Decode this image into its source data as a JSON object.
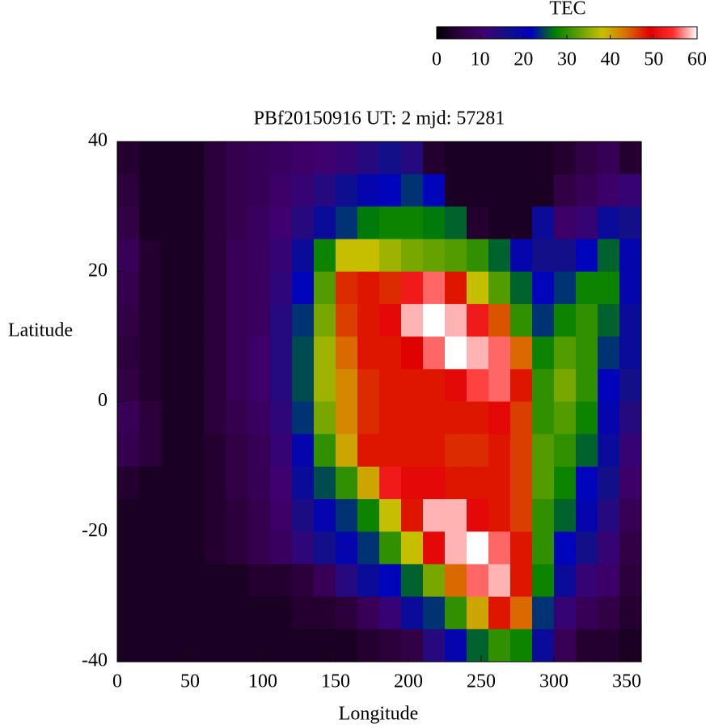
{
  "chart_data": {
    "type": "heatmap",
    "title": "PBf20150916  UT: 2  mjd: 57281",
    "x_label": "Longitude",
    "y_label": "Latitude",
    "colorbar_label": "TEC",
    "xlim": [
      0,
      360
    ],
    "xticks": [
      0,
      50,
      100,
      150,
      200,
      250,
      300,
      350
    ],
    "ylim": [
      -40,
      40
    ],
    "yticks": [
      -40,
      -20,
      0,
      20,
      40
    ],
    "zlim": [
      0,
      60
    ],
    "zticks": [
      0,
      10,
      20,
      30,
      40,
      50,
      60
    ],
    "colors": [
      "#000000",
      "#300040",
      "#400070",
      "#10108a",
      "#0000c0",
      "#008000",
      "#60a000",
      "#c8c000",
      "#d87000",
      "#e00000",
      "#ff3030",
      "#ffffff"
    ],
    "x": [
      7.5,
      22.5,
      37.5,
      52.5,
      67.5,
      82.5,
      97.5,
      112.5,
      127.5,
      142.5,
      157.5,
      172.5,
      187.5,
      202.5,
      217.5,
      232.5,
      247.5,
      262.5,
      277.5,
      292.5,
      307.5,
      322.5,
      337.5,
      352.5
    ],
    "y": [
      37.5,
      32.5,
      27.5,
      22.5,
      17.5,
      12.5,
      7.5,
      2.5,
      -2.5,
      -7.5,
      -12.5,
      -17.5,
      -22.5,
      -27.5,
      -32.5,
      -37.5
    ],
    "z": [
      [
        4,
        3,
        3,
        3,
        5,
        7,
        8,
        9,
        10,
        11,
        12,
        14,
        16,
        14,
        4,
        3,
        3,
        3,
        3,
        3,
        4,
        6,
        8,
        4
      ],
      [
        5,
        3,
        3,
        3,
        5,
        7,
        8,
        10,
        12,
        14,
        17,
        20,
        22,
        24,
        22,
        3,
        3,
        3,
        3,
        3,
        6,
        8,
        10,
        12
      ],
      [
        6,
        3,
        3,
        3,
        5,
        7,
        9,
        11,
        14,
        18,
        24,
        27,
        28,
        28,
        27,
        26,
        4,
        3,
        3,
        18,
        10,
        12,
        18,
        16
      ],
      [
        8,
        4,
        3,
        3,
        5,
        8,
        9,
        12,
        18,
        28,
        38,
        38,
        36,
        34,
        33,
        32,
        30,
        26,
        20,
        16,
        16,
        22,
        26,
        20
      ],
      [
        7,
        4,
        3,
        3,
        5,
        8,
        9,
        13,
        22,
        32,
        47,
        48,
        47,
        52,
        56,
        48,
        38,
        32,
        26,
        22,
        24,
        28,
        28,
        20
      ],
      [
        6,
        4,
        3,
        3,
        5,
        8,
        9,
        14,
        24,
        34,
        46,
        48,
        50,
        58,
        60,
        58,
        52,
        45,
        30,
        24,
        28,
        30,
        26,
        18
      ],
      [
        5,
        4,
        3,
        3,
        5,
        8,
        10,
        14,
        25,
        36,
        44,
        48,
        48,
        49,
        56,
        60,
        58,
        56,
        44,
        28,
        32,
        30,
        24,
        18
      ],
      [
        6,
        4,
        3,
        3,
        5,
        8,
        10,
        14,
        25,
        36,
        42,
        47,
        48,
        48,
        48,
        50,
        55,
        56,
        48,
        30,
        34,
        30,
        22,
        16
      ],
      [
        8,
        5,
        3,
        3,
        5,
        7,
        9,
        13,
        24,
        34,
        42,
        47,
        48,
        48,
        48,
        48,
        48,
        50,
        46,
        30,
        32,
        28,
        20,
        14
      ],
      [
        7,
        5,
        3,
        3,
        4,
        6,
        8,
        12,
        20,
        30,
        40,
        48,
        48,
        48,
        48,
        47,
        47,
        48,
        46,
        32,
        30,
        26,
        18,
        12
      ],
      [
        4,
        3,
        3,
        3,
        4,
        6,
        8,
        11,
        18,
        25,
        30,
        40,
        52,
        50,
        50,
        48,
        48,
        48,
        46,
        32,
        28,
        22,
        16,
        10
      ],
      [
        3,
        3,
        3,
        3,
        4,
        5,
        7,
        10,
        15,
        20,
        24,
        28,
        38,
        48,
        58,
        58,
        50,
        48,
        46,
        30,
        26,
        20,
        14,
        8
      ],
      [
        3,
        3,
        3,
        3,
        4,
        5,
        7,
        9,
        13,
        16,
        20,
        24,
        30,
        38,
        50,
        58,
        60,
        56,
        48,
        30,
        22,
        16,
        12,
        6
      ],
      [
        3,
        3,
        3,
        3,
        3,
        3,
        4,
        4,
        5,
        8,
        14,
        18,
        22,
        26,
        34,
        44,
        56,
        58,
        48,
        28,
        18,
        12,
        10,
        5
      ],
      [
        3,
        3,
        3,
        3,
        3,
        3,
        3,
        3,
        4,
        4,
        5,
        8,
        12,
        18,
        24,
        30,
        40,
        48,
        44,
        24,
        12,
        8,
        6,
        4
      ],
      [
        3,
        3,
        3,
        3,
        3,
        3,
        3,
        3,
        3,
        3,
        3,
        4,
        5,
        6,
        14,
        20,
        26,
        30,
        28,
        18,
        8,
        4,
        4,
        3
      ]
    ]
  }
}
